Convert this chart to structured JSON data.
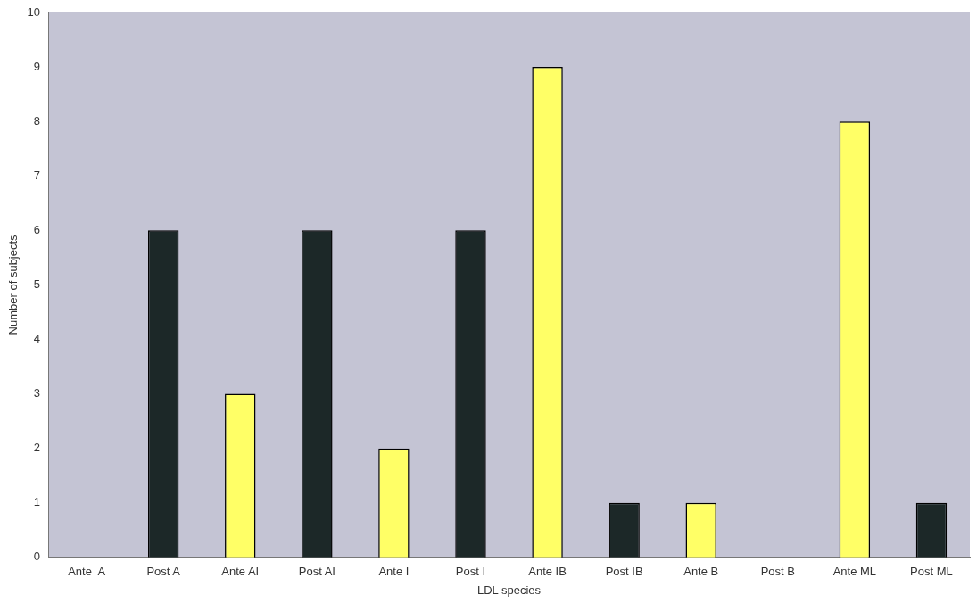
{
  "chart_data": {
    "type": "bar",
    "xlabel": "LDL species",
    "ylabel": "Number of subjects",
    "categories": [
      "Ante  A",
      "Post A",
      "Ante AI",
      "Post AI",
      "Ante I",
      "Post I",
      "Ante IB",
      "Post IB",
      "Ante B",
      "Post B",
      "Ante ML",
      "Post ML"
    ],
    "values": [
      0,
      6,
      3,
      6,
      2,
      6,
      9,
      1,
      1,
      0,
      8,
      1
    ],
    "colors": [
      "#ffff66",
      "#1c2828",
      "#ffff66",
      "#1c2828",
      "#ffff66",
      "#1c2828",
      "#ffff66",
      "#1c2828",
      "#ffff66",
      "#1c2828",
      "#ffff66",
      "#1c2828"
    ],
    "ylim": [
      0,
      10
    ],
    "yticks": [
      0,
      1,
      2,
      3,
      4,
      5,
      6,
      7,
      8,
      9,
      10
    ],
    "grid": false,
    "legend": false
  }
}
